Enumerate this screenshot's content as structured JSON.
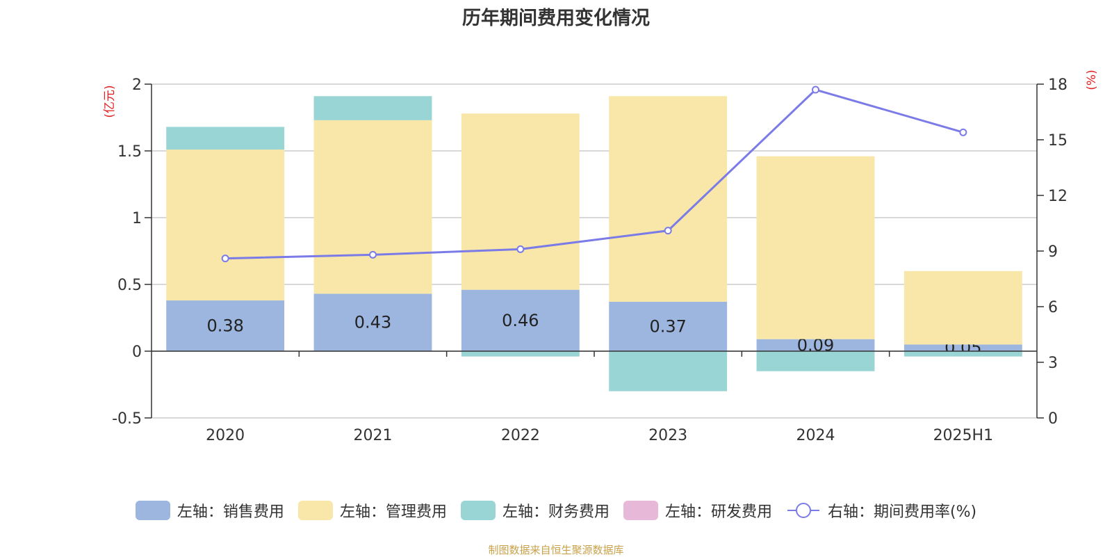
{
  "title": "历年期间费用变化情况",
  "source": "制图数据来自恒生聚源数据库",
  "chart_data": {
    "type": "bar",
    "stacked": true,
    "title": "历年期间费用变化情况",
    "categories": [
      "2020",
      "2021",
      "2022",
      "2023",
      "2024",
      "2025H1"
    ],
    "left_axis": {
      "unit_label": "(亿元)",
      "ylim": [
        -0.5,
        2
      ],
      "ticks": [
        -0.5,
        0,
        0.5,
        1,
        1.5,
        2
      ],
      "tick_labels": [
        "-0.5",
        "0",
        "0.5",
        "1",
        "1.5",
        "2"
      ]
    },
    "right_axis": {
      "unit_label": "(%)",
      "ylim": [
        0,
        18
      ],
      "ticks": [
        0,
        3,
        6,
        9,
        12,
        15,
        18
      ]
    },
    "grid": true,
    "legend_position": "bottom",
    "series": [
      {
        "name": "左轴：销售费用",
        "axis": "left",
        "kind": "bar",
        "color": "#9cb6e0",
        "values": [
          0.38,
          0.43,
          0.46,
          0.37,
          0.09,
          0.05
        ],
        "show_labels": true
      },
      {
        "name": "左轴：管理费用",
        "axis": "left",
        "kind": "bar",
        "color": "#f8e7a8",
        "values": [
          1.13,
          1.3,
          1.32,
          1.54,
          1.37,
          0.55
        ]
      },
      {
        "name": "左轴：财务费用",
        "axis": "left",
        "kind": "bar",
        "color": "#99d5d5",
        "values": [
          0.17,
          0.18,
          -0.04,
          -0.3,
          -0.15,
          -0.04
        ]
      },
      {
        "name": "左轴：研发费用",
        "axis": "left",
        "kind": "bar",
        "color": "#e8b8d8",
        "values": [
          0,
          0,
          0,
          0,
          0,
          0
        ]
      },
      {
        "name": "右轴：期间费用率(%)",
        "axis": "right",
        "kind": "line",
        "color": "#7b7be8",
        "values": [
          8.6,
          8.8,
          9.1,
          10.1,
          17.7,
          15.4
        ]
      }
    ]
  }
}
